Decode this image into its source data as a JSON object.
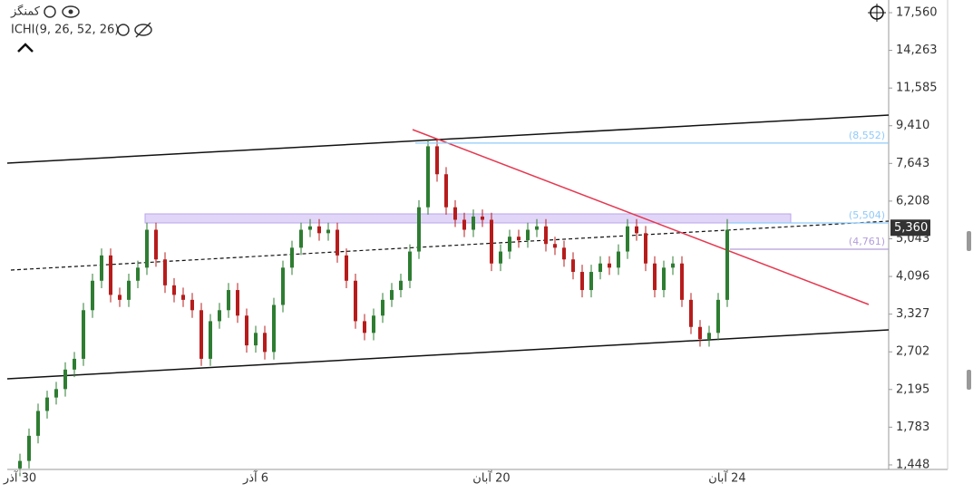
{
  "chart_data": {
    "type": "candlestick",
    "symbol": "کمنگز",
    "indicator": "ICHI(9, 26, 52, 26)",
    "log_scale": true,
    "up_color": "#2e7d32",
    "down_color": "#b71c1c",
    "open": [
      1420,
      1480,
      1700,
      1950,
      2100,
      2200,
      2450,
      2600,
      3400,
      4000,
      4600,
      3700,
      3600,
      4000,
      4300,
      5300,
      4500,
      3900,
      3700,
      3600,
      3400,
      2600,
      3200,
      3400,
      3800,
      3300,
      2800,
      3000,
      2700,
      3500,
      4300,
      4800,
      5300,
      5400,
      5200,
      5300,
      4600,
      4000,
      3200,
      3000,
      3300,
      3600,
      3800,
      4000,
      4700,
      6000,
      8400,
      7200,
      6000,
      5600,
      5300,
      5700,
      5600,
      4400,
      4700,
      5100,
      5000,
      5300,
      5400,
      4900,
      4800,
      4500,
      4200,
      3800,
      4200,
      4400,
      4300,
      4700,
      5400,
      5200,
      4400,
      3800,
      4300,
      4400,
      3600,
      3100,
      2900,
      3000,
      3600
    ],
    "high": [
      1540,
      1770,
      2030,
      2180,
      2290,
      2550,
      2700,
      3540,
      4160,
      4780,
      4780,
      3850,
      4160,
      4470,
      5510,
      5510,
      4680,
      4060,
      3850,
      3740,
      3540,
      3330,
      3540,
      3950,
      3950,
      3430,
      3120,
      3120,
      3640,
      4470,
      4990,
      5510,
      5620,
      5620,
      5510,
      5510,
      4780,
      4160,
      3330,
      3430,
      3740,
      3950,
      4160,
      4890,
      6240,
      8740,
      8740,
      7490,
      6240,
      5820,
      5930,
      5930,
      5820,
      4890,
      5300,
      5300,
      5510,
      5620,
      5620,
      5100,
      4990,
      4680,
      4370,
      4370,
      4580,
      4580,
      4890,
      5620,
      5620,
      5410,
      4580,
      4470,
      4580,
      4580,
      3740,
      3220,
      3120,
      3740,
      5620
    ],
    "low": [
      1360,
      1420,
      1630,
      1870,
      2020,
      2110,
      2350,
      2500,
      3260,
      3840,
      3550,
      3460,
      3460,
      3840,
      4130,
      4320,
      3740,
      3550,
      3460,
      3260,
      2500,
      2500,
      3070,
      3260,
      3170,
      2690,
      2690,
      2590,
      2590,
      3360,
      4130,
      4610,
      5090,
      4990,
      4990,
      4420,
      3840,
      3070,
      2880,
      2880,
      3170,
      3460,
      3650,
      3840,
      4510,
      5760,
      6910,
      5760,
      5380,
      5090,
      5090,
      5380,
      4220,
      4220,
      4510,
      4800,
      4800,
      5090,
      4700,
      4610,
      4320,
      4030,
      3650,
      3650,
      4030,
      4130,
      4130,
      4510,
      4990,
      4220,
      3650,
      3650,
      4130,
      3460,
      2980,
      2780,
      2780,
      2880,
      3460
    ],
    "close": [
      1480,
      1700,
      1950,
      2100,
      2200,
      2450,
      2600,
      3400,
      4000,
      4600,
      3700,
      3600,
      4000,
      4300,
      5300,
      4500,
      3900,
      3700,
      3600,
      3400,
      2600,
      3200,
      3400,
      3800,
      3300,
      2800,
      3000,
      2700,
      3500,
      4300,
      4800,
      5300,
      5400,
      5200,
      5300,
      4600,
      4000,
      3200,
      3000,
      3300,
      3600,
      3800,
      4000,
      4700,
      6000,
      8400,
      7200,
      6000,
      5600,
      5300,
      5700,
      5600,
      4400,
      4700,
      5100,
      5000,
      5300,
      5400,
      4900,
      4800,
      4500,
      4200,
      3800,
      4200,
      4400,
      4300,
      4700,
      5400,
      5200,
      4400,
      3800,
      4300,
      4400,
      3600,
      3100,
      2900,
      3000,
      3600,
      5300
    ],
    "xlim": [
      -1.4,
      95.8
    ],
    "xticks": [
      {
        "value": 0,
        "label": "30 آذر"
      },
      {
        "value": 26,
        "label": "6 آذر"
      },
      {
        "value": 52,
        "label": "20 آبان"
      },
      {
        "value": 78,
        "label": "24 آبان"
      }
    ],
    "ylim": [
      1412,
      18833
    ],
    "yticks": [
      {
        "value": 17560,
        "label": "17,560"
      },
      {
        "value": 14263,
        "label": "14,263"
      },
      {
        "value": 11585,
        "label": "11,585"
      },
      {
        "value": 9410,
        "label": "9,410"
      },
      {
        "value": 7643,
        "label": "7,643"
      },
      {
        "value": 6208,
        "label": "6,208"
      },
      {
        "value": 5043,
        "label": "5,043"
      },
      {
        "value": 4096,
        "label": "4,096"
      },
      {
        "value": 3327,
        "label": "3,327"
      },
      {
        "value": 2702,
        "label": "2,702"
      },
      {
        "value": 2195,
        "label": "2,195"
      },
      {
        "value": 1783,
        "label": "1,783"
      },
      {
        "value": 1448,
        "label": "1,448"
      }
    ],
    "price_lines": [
      {
        "value": 8552,
        "label": "(8,552)",
        "color": "#90caf9"
      },
      {
        "value": 5504,
        "label": "(5,504)",
        "color": "#90caf9"
      },
      {
        "value": 4761,
        "label": "(4,761)",
        "color": "#b39ddb"
      }
    ],
    "last_price": {
      "value": 5360,
      "label": "5,360"
    }
  }
}
